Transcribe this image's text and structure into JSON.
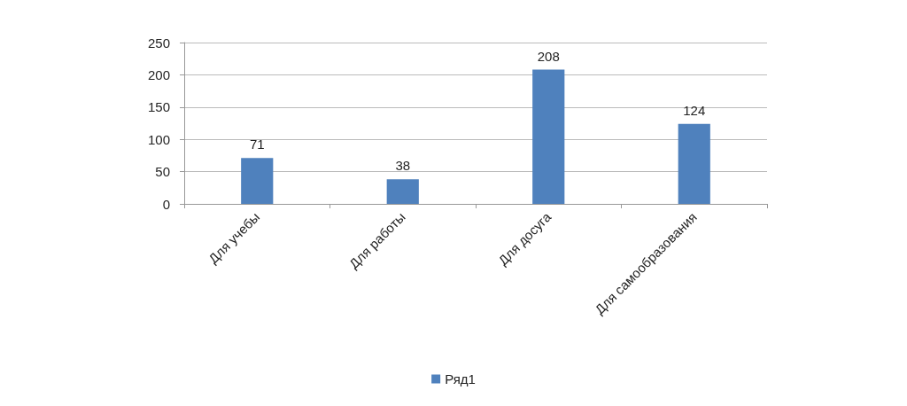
{
  "chart_data": {
    "type": "bar",
    "categories": [
      "Для учебы",
      "Для работы",
      "Для досуга",
      "Для самообразования"
    ],
    "series": [
      {
        "name": "Ряд1",
        "color": "#4f81bd",
        "values": [
          71,
          38,
          208,
          124
        ]
      }
    ],
    "ylim": [
      0,
      250
    ],
    "yticks": [
      0,
      50,
      100,
      150,
      200,
      250
    ],
    "grid": "y",
    "legend": "bottom",
    "data_labels": true
  }
}
